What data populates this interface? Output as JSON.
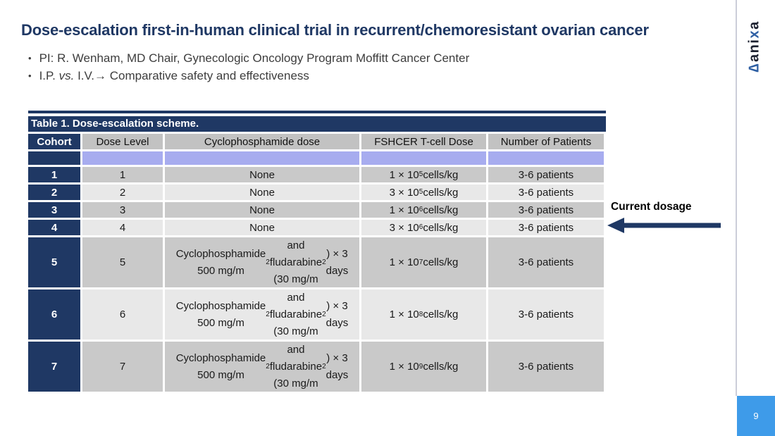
{
  "slide": {
    "title": "Dose-escalation first-in-human clinical trial in recurrent/chemoresistant ovarian cancer",
    "bullet_char": "•",
    "bullets": {
      "b1": "PI: R. Wenham, MD Chair, Gynecologic Oncology Program Moffitt Cancer Center",
      "b2_pre": "I.P. ",
      "b2_vs": "vs.",
      "b2_mid": " I.V.",
      "b2_arrow": "→",
      "b2_rest": " Comparative safety and effectiveness"
    },
    "page_number": "9"
  },
  "logo": {
    "delta": "∆",
    "part1": "ani",
    "x": "x",
    "part2": "a"
  },
  "annotation": {
    "label": "Current dosage"
  },
  "table": {
    "title": "Table 1. Dose-escalation scheme.",
    "columns": [
      "Cohort",
      "Dose Level",
      "Cyclophosphamide dose",
      "FSHCER T-cell Dose",
      "Number of Patients"
    ],
    "spacer_row": [
      "",
      "",
      "",
      "",
      ""
    ],
    "rows": [
      {
        "cohort": "1",
        "dose_level": "1",
        "cyclo": "None",
        "tcell": "1 × 10^5 cells/kg",
        "patients": "3-6 patients"
      },
      {
        "cohort": "2",
        "dose_level": "2",
        "cyclo": "None",
        "tcell": "3 × 10^5 cells/kg",
        "patients": "3-6 patients"
      },
      {
        "cohort": "3",
        "dose_level": "3",
        "cyclo": "None",
        "tcell": "1 × 10^6 cells/kg",
        "patients": "3-6 patients"
      },
      {
        "cohort": "4",
        "dose_level": "4",
        "cyclo": "None",
        "tcell": "3 × 10^6 cells/kg",
        "patients": "3-6 patients"
      },
      {
        "cohort": "5",
        "dose_level": "5",
        "cyclo": "Cyclophosphamide 500 mg/m^2 and fludarabine (30 mg/m^2) × 3 days",
        "tcell": "1 × 10^7 cells/kg",
        "patients": "3-6 patients"
      },
      {
        "cohort": "6",
        "dose_level": "6",
        "cyclo": "Cyclophosphamide 500 mg/m^2 and fludarabine (30 mg/m^2) × 3 days",
        "tcell": "1 × 10^8 cells/kg",
        "patients": "3-6 patients"
      },
      {
        "cohort": "7",
        "dose_level": "7",
        "cyclo": "Cyclophosphamide 500 mg/m^2 and fludarabine (30 mg/m^2) × 3 days",
        "tcell": "1 × 10^9 cells/kg",
        "patients": "3-6 patients"
      }
    ]
  },
  "colors": {
    "navy": "#1F3864",
    "header_gray": "#C2C2C2",
    "row_dark": "#C9C9C9",
    "row_light": "#E8E8E8",
    "lavender_row": "#A7ACEF",
    "page_box_blue": "#3E9BE9",
    "logo_blue": "#2E5FA3"
  }
}
